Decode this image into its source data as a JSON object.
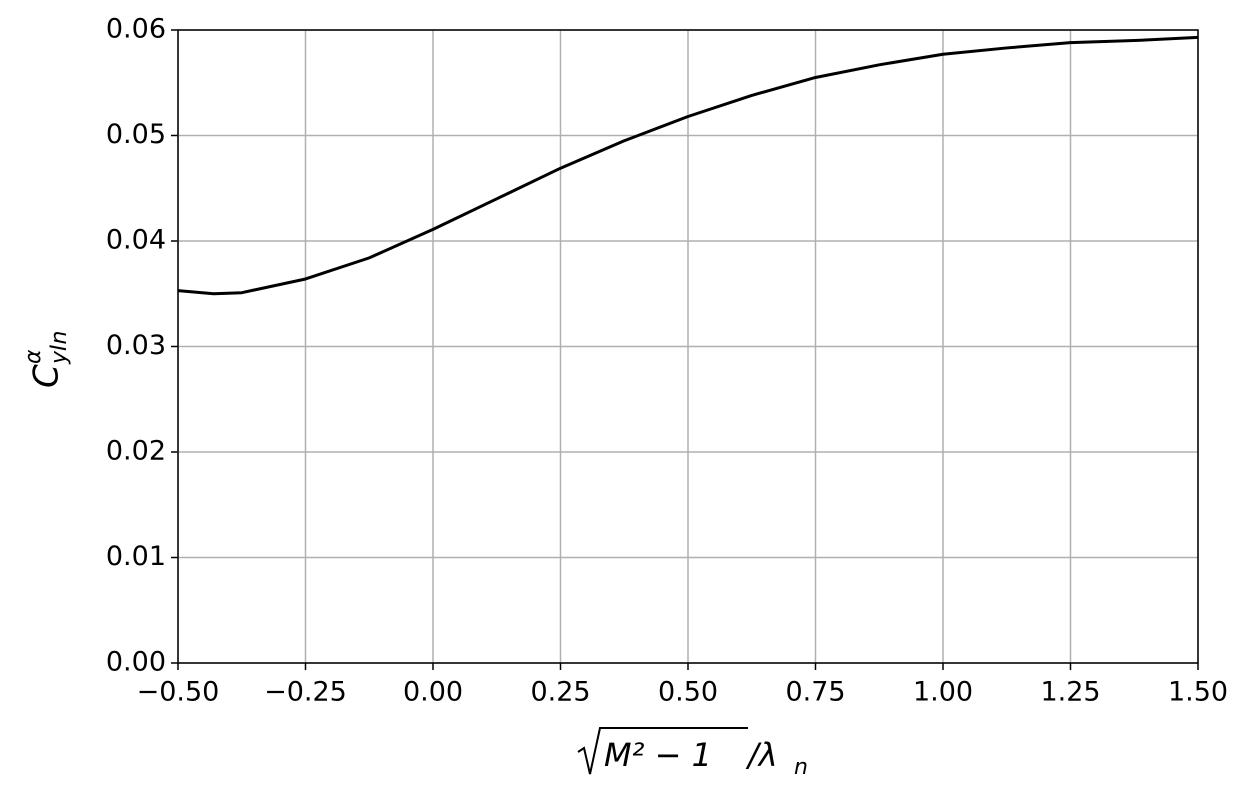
{
  "chart_data": {
    "type": "line",
    "x_label": {
      "radicand": "M² − 1",
      "rest": "/λ",
      "sub": "n"
    },
    "y_label": {
      "base": "C",
      "sup": "α",
      "sub": "yIn"
    },
    "x": [
      -0.5,
      -0.43,
      -0.375,
      -0.25,
      -0.125,
      0,
      0.125,
      0.25,
      0.375,
      0.5,
      0.625,
      0.75,
      0.875,
      1.0,
      1.125,
      1.25,
      1.375,
      1.5
    ],
    "series": [
      {
        "color": "#000000",
        "values": [
          0.0353,
          0.035,
          0.0351,
          0.0364,
          0.0384,
          0.0411,
          0.044,
          0.0469,
          0.0495,
          0.0518,
          0.0538,
          0.0555,
          0.0567,
          0.0577,
          0.0583,
          0.0588,
          0.059,
          0.0593
        ]
      }
    ],
    "xlim": [
      -0.5,
      1.5
    ],
    "ylim": [
      0,
      0.06
    ],
    "xticks": [
      {
        "value": -0.5,
        "label": "−0.50"
      },
      {
        "value": -0.25,
        "label": "−0.25"
      },
      {
        "value": 0,
        "label": "0.00"
      },
      {
        "value": 0.25,
        "label": "0.25"
      },
      {
        "value": 0.5,
        "label": "0.50"
      },
      {
        "value": 0.75,
        "label": "0.75"
      },
      {
        "value": 1.0,
        "label": "1.00"
      },
      {
        "value": 1.25,
        "label": "1.25"
      },
      {
        "value": 1.5,
        "label": "1.50"
      }
    ],
    "yticks": [
      {
        "value": 0,
        "label": "0.00"
      },
      {
        "value": 0.01,
        "label": "0.01"
      },
      {
        "value": 0.02,
        "label": "0.02"
      },
      {
        "value": 0.03,
        "label": "0.03"
      },
      {
        "value": 0.04,
        "label": "0.04"
      },
      {
        "value": 0.05,
        "label": "0.05"
      },
      {
        "value": 0.06,
        "label": "0.06"
      }
    ],
    "grid": true
  }
}
